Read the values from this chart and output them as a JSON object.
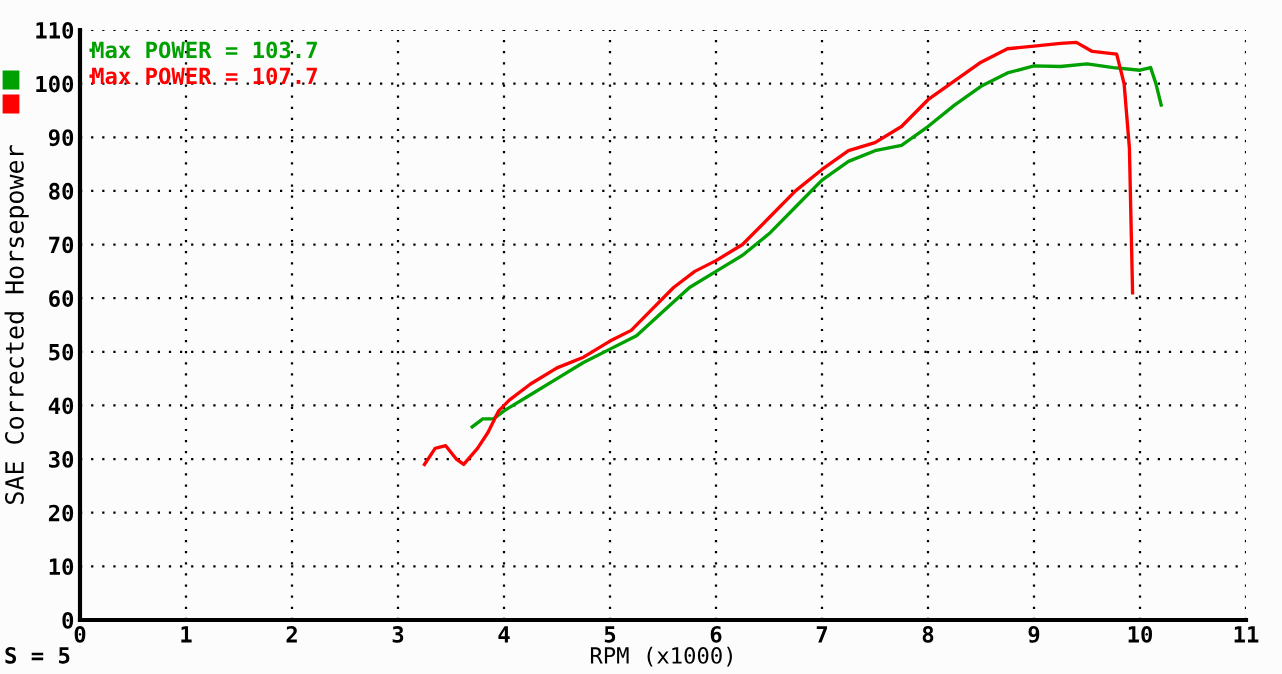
{
  "chart_data": {
    "type": "line",
    "xlabel": "RPM (x1000)",
    "ylabel": "SAE Corrected Horsepower",
    "annotations": [
      "S = 5"
    ],
    "series": [
      {
        "name": "Max POWER = 103.7",
        "color": "#00a000",
        "x": [
          3.7,
          3.8,
          3.9,
          4.0,
          4.25,
          4.5,
          4.75,
          5.0,
          5.25,
          5.5,
          5.75,
          6.0,
          6.25,
          6.5,
          6.75,
          7.0,
          7.25,
          7.5,
          7.75,
          8.0,
          8.25,
          8.5,
          8.75,
          9.0,
          9.25,
          9.5,
          9.75,
          10.0,
          10.1,
          10.15,
          10.2
        ],
        "values": [
          36,
          37.5,
          37.5,
          39,
          42,
          45,
          48,
          50.5,
          53,
          57.5,
          62,
          65,
          68,
          72,
          77,
          82,
          85.5,
          87.5,
          88.5,
          92,
          96,
          99.5,
          102,
          103.3,
          103.2,
          103.7,
          103,
          102.5,
          103,
          100,
          96
        ]
      },
      {
        "name": "Max POWER = 107.7",
        "color": "#ff0000",
        "x": [
          3.25,
          3.35,
          3.45,
          3.55,
          3.62,
          3.75,
          3.85,
          3.95,
          4.05,
          4.25,
          4.5,
          4.75,
          5.0,
          5.2,
          5.4,
          5.6,
          5.8,
          6.0,
          6.25,
          6.5,
          6.75,
          7.0,
          7.25,
          7.5,
          7.75,
          8.0,
          8.25,
          8.5,
          8.75,
          9.0,
          9.25,
          9.4,
          9.55,
          9.78,
          9.85,
          9.9,
          9.93
        ],
        "values": [
          29,
          32,
          32.5,
          30,
          29,
          32,
          35,
          39,
          41,
          44,
          47,
          49,
          52,
          54,
          58,
          62,
          65,
          67,
          70,
          75,
          80,
          84,
          87.5,
          89,
          92,
          97,
          100.5,
          104,
          106.5,
          107,
          107.5,
          107.7,
          106,
          105.5,
          100,
          88,
          61
        ]
      }
    ],
    "xlim": [
      0,
      11
    ],
    "ylim": [
      0,
      110
    ],
    "xticks": [
      0,
      1,
      2,
      3,
      4,
      5,
      6,
      7,
      8,
      9,
      10,
      11
    ],
    "yticks": [
      0,
      10,
      20,
      30,
      40,
      50,
      60,
      70,
      80,
      90,
      100,
      110
    ],
    "grid": true,
    "legend": "top left",
    "marker": "none",
    "line_style": "solid"
  }
}
